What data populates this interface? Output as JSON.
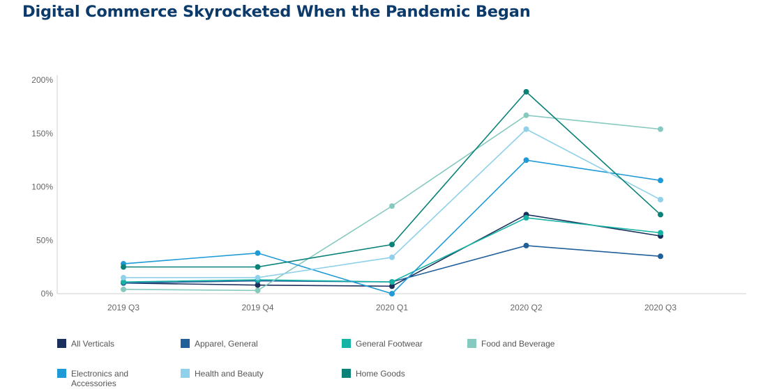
{
  "title": "Digital Commerce Skyrocketed When the Pandemic Began",
  "chart_data": {
    "type": "line",
    "title": "Digital Commerce Skyrocketed When the Pandemic Began",
    "xlabel": "",
    "ylabel": "",
    "categories": [
      "2019 Q3",
      "2019 Q4",
      "2020 Q1",
      "2020 Q2",
      "2020 Q3"
    ],
    "ylim": [
      0,
      200
    ],
    "yticks": [
      0,
      50,
      100,
      150,
      200
    ],
    "ytick_labels": [
      "0%",
      "50%",
      "100%",
      "150%",
      "200%"
    ],
    "grid": false,
    "legend_position": "bottom",
    "series": [
      {
        "name": "All Verticals",
        "color": "#1b2f5c",
        "values": [
          10,
          8,
          7,
          74,
          54
        ]
      },
      {
        "name": "Apparel, General",
        "color": "#215f9a",
        "values": [
          10,
          12,
          11,
          45,
          35
        ]
      },
      {
        "name": "General Footwear",
        "color": "#14b3a3",
        "values": [
          11,
          13,
          11,
          71,
          57
        ]
      },
      {
        "name": "Food and Beverage",
        "color": "#86c9bf",
        "values": [
          4,
          3,
          82,
          167,
          154
        ]
      },
      {
        "name": "Electronics and Accessories",
        "color": "#1e9ad6",
        "values": [
          28,
          38,
          0,
          125,
          106
        ]
      },
      {
        "name": "Health and Beauty",
        "color": "#8fd0ea",
        "values": [
          15,
          15,
          34,
          154,
          88
        ]
      },
      {
        "name": "Home Goods",
        "color": "#0a8278",
        "values": [
          25,
          25,
          46,
          189,
          74
        ]
      }
    ]
  }
}
